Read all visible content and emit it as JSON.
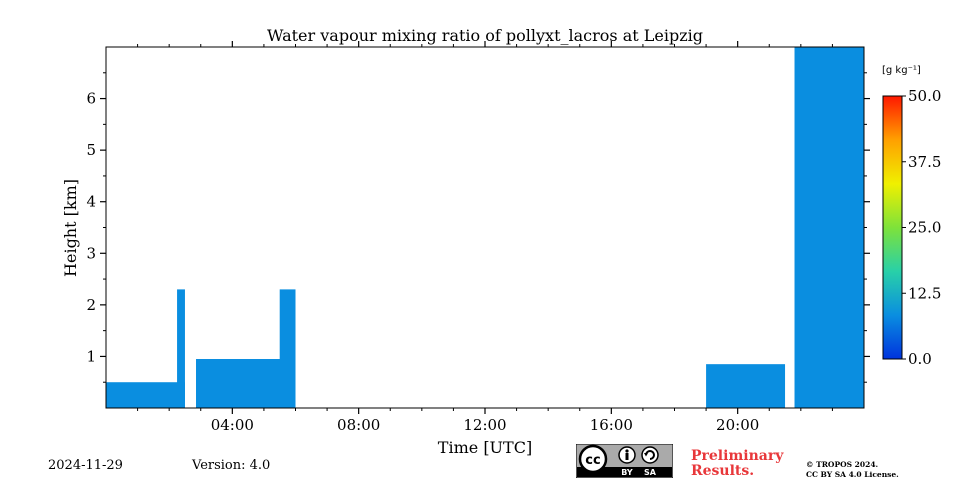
{
  "chart_data": {
    "type": "heatmap",
    "title": "Water vapour mixing ratio of pollyxt_lacros at Leipzig",
    "xlabel": "Time [UTC]",
    "ylabel": "Height [km]",
    "xlim": [
      0,
      24
    ],
    "ylim": [
      0,
      7
    ],
    "x_ticks": [
      {
        "value": 4,
        "label": "04:00"
      },
      {
        "value": 8,
        "label": "08:00"
      },
      {
        "value": 12,
        "label": "12:00"
      },
      {
        "value": 16,
        "label": "16:00"
      },
      {
        "value": 20,
        "label": "20:00"
      }
    ],
    "y_ticks": [
      {
        "value": 1,
        "label": "1"
      },
      {
        "value": 2,
        "label": "2"
      },
      {
        "value": 3,
        "label": "3"
      },
      {
        "value": 4,
        "label": "4"
      },
      {
        "value": 5,
        "label": "5"
      },
      {
        "value": 6,
        "label": "6"
      }
    ],
    "colorbar": {
      "unit": "[g kg⁻¹]",
      "range": [
        0,
        50
      ],
      "ticks": [
        "0.0",
        "12.5",
        "25.0",
        "37.5",
        "50.0"
      ],
      "colors": [
        "#0033dd",
        "#0a8ee0",
        "#28d0a8",
        "#7ee23a",
        "#f0f000",
        "#ffa000",
        "#ff1800"
      ]
    },
    "data_segments": [
      {
        "start_hour": 0.0,
        "end_hour": 2.5,
        "top_km": 0.5,
        "value": 5
      },
      {
        "start_hour": 2.25,
        "end_hour": 2.5,
        "top_km": 2.3,
        "value": 5
      },
      {
        "start_hour": 2.85,
        "end_hour": 6.0,
        "top_km": 0.95,
        "value": 5
      },
      {
        "start_hour": 5.5,
        "end_hour": 6.0,
        "top_km": 2.3,
        "value": 5
      },
      {
        "start_hour": 19.0,
        "end_hour": 21.5,
        "top_km": 0.85,
        "value": 5
      },
      {
        "start_hour": 21.8,
        "end_hour": 24.0,
        "top_km": 7.0,
        "value": 5
      }
    ]
  },
  "footer": {
    "date": "2024-11-29",
    "version": "Version: 4.0",
    "preliminary_line1": "Preliminary",
    "preliminary_line2": "Results.",
    "copyright_line1": "© TROPOS 2024.",
    "copyright_line2": "CC BY SA 4.0 License.",
    "license_badge": {
      "cc": "cc",
      "by": "BY",
      "sa": "SA"
    }
  }
}
